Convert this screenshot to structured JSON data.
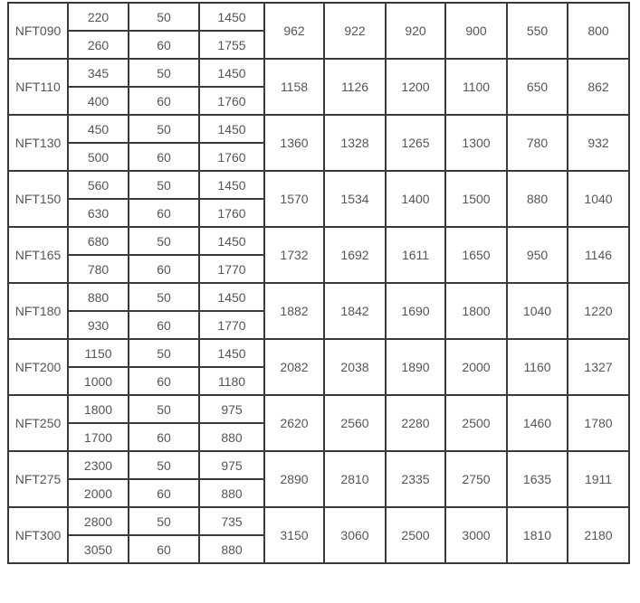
{
  "rows": [
    {
      "model": "NFT090",
      "sub": [
        [
          "220",
          "50",
          "1450"
        ],
        [
          "260",
          "60",
          "1755"
        ]
      ],
      "vals": [
        "962",
        "922",
        "920",
        "900",
        "550",
        "800"
      ]
    },
    {
      "model": "NFT110",
      "sub": [
        [
          "345",
          "50",
          "1450"
        ],
        [
          "400",
          "60",
          "1760"
        ]
      ],
      "vals": [
        "1158",
        "1126",
        "1200",
        "1100",
        "650",
        "862"
      ]
    },
    {
      "model": "NFT130",
      "sub": [
        [
          "450",
          "50",
          "1450"
        ],
        [
          "500",
          "60",
          "1760"
        ]
      ],
      "vals": [
        "1360",
        "1328",
        "1265",
        "1300",
        "780",
        "932"
      ]
    },
    {
      "model": "NFT150",
      "sub": [
        [
          "560",
          "50",
          "1450"
        ],
        [
          "630",
          "60",
          "1760"
        ]
      ],
      "vals": [
        "1570",
        "1534",
        "1400",
        "1500",
        "880",
        "1040"
      ]
    },
    {
      "model": "NFT165",
      "sub": [
        [
          "680",
          "50",
          "1450"
        ],
        [
          "780",
          "60",
          "1770"
        ]
      ],
      "vals": [
        "1732",
        "1692",
        "1611",
        "1650",
        "950",
        "1146"
      ]
    },
    {
      "model": "NFT180",
      "sub": [
        [
          "880",
          "50",
          "1450"
        ],
        [
          "930",
          "60",
          "1770"
        ]
      ],
      "vals": [
        "1882",
        "1842",
        "1690",
        "1800",
        "1040",
        "1220"
      ]
    },
    {
      "model": "NFT200",
      "sub": [
        [
          "1150",
          "50",
          "1450"
        ],
        [
          "1000",
          "60",
          "1180"
        ]
      ],
      "vals": [
        "2082",
        "2038",
        "1890",
        "2000",
        "1160",
        "1327"
      ]
    },
    {
      "model": "NFT250",
      "sub": [
        [
          "1800",
          "50",
          "975"
        ],
        [
          "1700",
          "60",
          "880"
        ]
      ],
      "vals": [
        "2620",
        "2560",
        "2280",
        "2500",
        "1460",
        "1780"
      ]
    },
    {
      "model": "NFT275",
      "sub": [
        [
          "2300",
          "50",
          "975"
        ],
        [
          "2000",
          "60",
          "880"
        ]
      ],
      "vals": [
        "2890",
        "2810",
        "2335",
        "2750",
        "1635",
        "1911"
      ]
    },
    {
      "model": "NFT300",
      "sub": [
        [
          "2800",
          "50",
          "735"
        ],
        [
          "3050",
          "60",
          "880"
        ]
      ],
      "vals": [
        "3150",
        "3060",
        "2500",
        "3000",
        "1810",
        "2180"
      ]
    }
  ]
}
